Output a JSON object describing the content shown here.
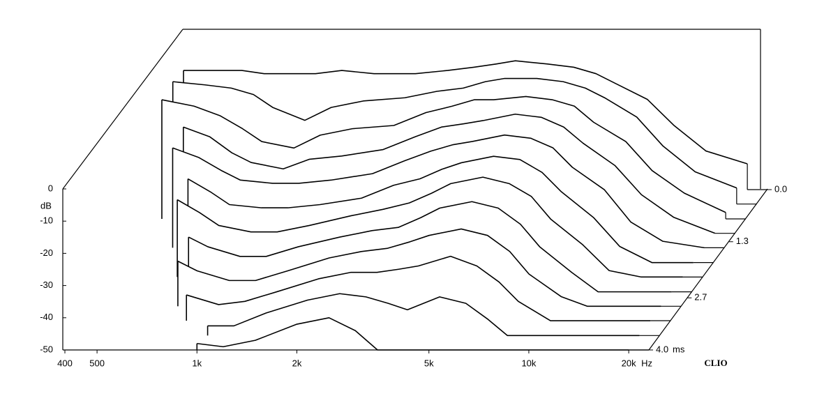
{
  "chart_data": {
    "type": "waterfall",
    "ylabel": "dB",
    "xunit": "Hz",
    "zunit": "ms",
    "brand": "CLIO",
    "log_x": true,
    "xlim": [
      400,
      23000
    ],
    "ylim": [
      -50,
      0
    ],
    "zlim": [
      0,
      4
    ],
    "xticks": [
      400,
      500,
      {
        "value": 1000,
        "label": "1k"
      },
      {
        "value": 2000,
        "label": "2k"
      },
      {
        "value": 5000,
        "label": "5k"
      },
      {
        "value": 10000,
        "label": "10k"
      },
      {
        "value": 20000,
        "label": "20k"
      }
    ],
    "yticks": [
      0,
      -10,
      -20,
      -30,
      -40,
      -50
    ],
    "zticks": [
      {
        "value": 0,
        "label": "0.0"
      },
      {
        "value": 1.3,
        "label": "1.3"
      },
      {
        "value": 2.7,
        "label": "2.7"
      },
      {
        "value": 4,
        "label": "4.0"
      }
    ],
    "color": "#000000",
    "x": [
      400,
      500,
      600,
      700,
      800,
      1000,
      1200,
      1500,
      2000,
      2500,
      3000,
      3500,
      4000,
      5000,
      6000,
      7000,
      8000,
      10000,
      12000,
      15000,
      20000
    ],
    "z": [
      0.0,
      0.36,
      0.73,
      1.09,
      1.45,
      1.82,
      2.18,
      2.55,
      2.91,
      3.27,
      3.64,
      4.0
    ],
    "series": [
      {
        "values": [
          -13,
          -13,
          -13,
          -14,
          -14,
          -14,
          -13,
          -14,
          -14,
          -13,
          -12,
          -11,
          -10,
          -11,
          -12,
          -14,
          -17,
          -22,
          -30,
          -38,
          -42
        ]
      },
      {
        "values": [
          -12,
          -13,
          -14,
          -16,
          -20,
          -24,
          -20,
          -18,
          -17,
          -15,
          -14,
          -12,
          -11,
          -11,
          -12,
          -14,
          -17,
          -23,
          -32,
          -40,
          -45
        ]
      },
      {
        "values": [
          -13,
          -15,
          -18,
          -22,
          -26,
          -28,
          -24,
          -22,
          -21,
          -17,
          -15,
          -13,
          -13,
          -12,
          -13,
          -15,
          -20,
          -26,
          -35,
          -42,
          -48
        ]
      },
      {
        "values": [
          null,
          -17,
          -20,
          -25,
          -28,
          -30,
          -27,
          -26,
          -24,
          -20,
          -17,
          -16,
          -15,
          -13,
          -14,
          -17,
          -22,
          -29,
          -38,
          -45,
          -50
        ]
      },
      {
        "values": [
          null,
          -19,
          -22,
          -26,
          -29,
          -30,
          -30,
          -29,
          -27,
          -23,
          -20,
          -18,
          -17,
          -15,
          -16,
          -19,
          -25,
          -32,
          -42,
          -48,
          -50
        ]
      },
      {
        "values": [
          null,
          null,
          -24,
          -28,
          -32,
          -33,
          -33,
          -32,
          -30,
          -26,
          -24,
          -21,
          -19,
          -17,
          -18,
          -22,
          -28,
          -36,
          -45,
          -50,
          -50
        ]
      },
      {
        "values": [
          null,
          null,
          -26,
          -30,
          -34,
          -36,
          -36,
          -34,
          -31,
          -29,
          -27,
          -24,
          -21,
          -19,
          -21,
          -25,
          -32,
          -40,
          -48,
          -50,
          -50
        ]
      },
      {
        "values": [
          null,
          null,
          null,
          -33,
          -36,
          -39,
          -39,
          -36,
          -33,
          -31,
          -30,
          -27,
          -24,
          -22,
          -24,
          -29,
          -36,
          -44,
          -50,
          -50,
          -50
        ]
      },
      {
        "values": [
          null,
          null,
          null,
          -36,
          -39,
          -42,
          -42,
          -39,
          -35,
          -33,
          -32,
          -30,
          -28,
          -26,
          -28,
          -33,
          -40,
          -47,
          -50,
          -50,
          -50
        ]
      },
      {
        "values": [
          null,
          null,
          null,
          null,
          -42,
          -45,
          -44,
          -41,
          -37,
          -35,
          -35,
          -34,
          -33,
          -30,
          -33,
          -38,
          -44,
          -50,
          -50,
          -50,
          -50
        ]
      },
      {
        "values": [
          null,
          null,
          null,
          null,
          null,
          -47,
          -47,
          -43,
          -39,
          -37,
          -38,
          -40,
          -42,
          -38,
          -40,
          -45,
          -50,
          -50,
          -50,
          -50,
          -50
        ]
      },
      {
        "values": [
          null,
          null,
          null,
          null,
          null,
          -48,
          -49,
          -47,
          -42,
          -40,
          -44,
          -50,
          -50,
          -50,
          -50,
          -50,
          -50,
          -50,
          -50,
          -50,
          -50
        ]
      }
    ]
  }
}
